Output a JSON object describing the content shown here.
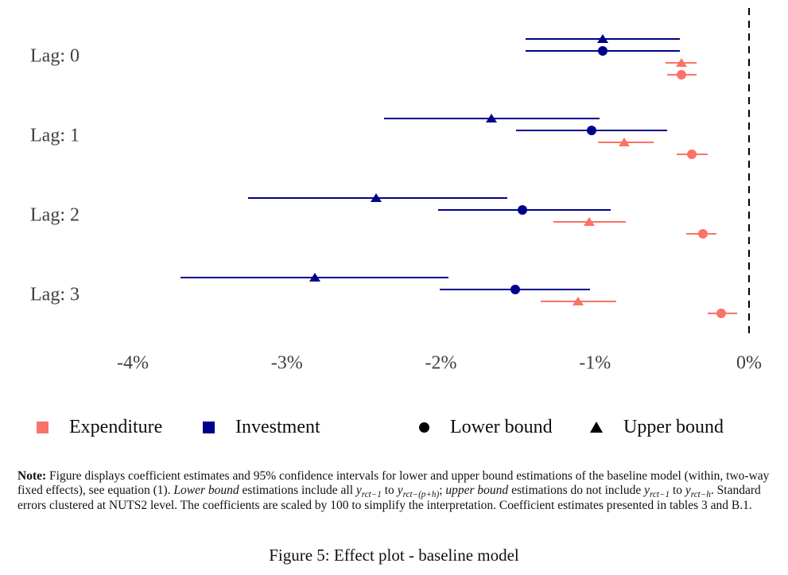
{
  "colors": {
    "expenditure": "#FA7268",
    "investment": "#00008B",
    "bound_marker": "#000000",
    "zero_line": "#000000"
  },
  "chart_data": {
    "type": "scatter",
    "subtype": "coefficient-dot-whisker",
    "title": "",
    "x_unit": "percent",
    "x_ticks": [
      -4,
      -3,
      -2,
      -1,
      0
    ],
    "x_tick_labels": [
      "-4%",
      "-3%",
      "-2%",
      "-1%",
      "0%"
    ],
    "x_range": [
      -4.75,
      0.25
    ],
    "zero_line_x": 0,
    "grid": "off",
    "groups": [
      {
        "label": "Lag: 0",
        "estimates": [
          {
            "series": "Investment",
            "bound": "upper",
            "marker": "triangle",
            "value": -0.95,
            "ci_low": -1.45,
            "ci_high": -0.45
          },
          {
            "series": "Investment",
            "bound": "lower",
            "marker": "circle",
            "value": -0.95,
            "ci_low": -1.45,
            "ci_high": -0.45
          },
          {
            "series": "Expenditure",
            "bound": "upper",
            "marker": "triangle",
            "value": -0.44,
            "ci_low": -0.54,
            "ci_high": -0.34
          },
          {
            "series": "Expenditure",
            "bound": "lower",
            "marker": "circle",
            "value": -0.44,
            "ci_low": -0.53,
            "ci_high": -0.34
          }
        ]
      },
      {
        "label": "Lag: 1",
        "estimates": [
          {
            "series": "Investment",
            "bound": "upper",
            "marker": "triangle",
            "value": -1.67,
            "ci_low": -2.37,
            "ci_high": -0.97
          },
          {
            "series": "Investment",
            "bound": "lower",
            "marker": "circle",
            "value": -1.02,
            "ci_low": -1.51,
            "ci_high": -0.53
          },
          {
            "series": "Expenditure",
            "bound": "upper",
            "marker": "triangle",
            "value": -0.81,
            "ci_low": -0.98,
            "ci_high": -0.62
          },
          {
            "series": "Expenditure",
            "bound": "lower",
            "marker": "circle",
            "value": -0.37,
            "ci_low": -0.47,
            "ci_high": -0.27
          }
        ]
      },
      {
        "label": "Lag: 2",
        "estimates": [
          {
            "series": "Investment",
            "bound": "upper",
            "marker": "triangle",
            "value": -2.42,
            "ci_low": -3.25,
            "ci_high": -1.57
          },
          {
            "series": "Investment",
            "bound": "lower",
            "marker": "circle",
            "value": -1.47,
            "ci_low": -2.02,
            "ci_high": -0.9
          },
          {
            "series": "Expenditure",
            "bound": "upper",
            "marker": "triangle",
            "value": -1.04,
            "ci_low": -1.27,
            "ci_high": -0.8
          },
          {
            "series": "Expenditure",
            "bound": "lower",
            "marker": "circle",
            "value": -0.3,
            "ci_low": -0.41,
            "ci_high": -0.21
          }
        ]
      },
      {
        "label": "Lag: 3",
        "estimates": [
          {
            "series": "Investment",
            "bound": "upper",
            "marker": "triangle",
            "value": -2.82,
            "ci_low": -3.69,
            "ci_high": -1.95
          },
          {
            "series": "Investment",
            "bound": "lower",
            "marker": "circle",
            "value": -1.52,
            "ci_low": -2.01,
            "ci_high": -1.03
          },
          {
            "series": "Expenditure",
            "bound": "upper",
            "marker": "triangle",
            "value": -1.11,
            "ci_low": -1.35,
            "ci_high": -0.86
          },
          {
            "series": "Expenditure",
            "bound": "lower",
            "marker": "circle",
            "value": -0.18,
            "ci_low": -0.27,
            "ci_high": -0.08
          }
        ]
      }
    ]
  },
  "legend": {
    "items": [
      {
        "label": "Expenditure",
        "marker": "square",
        "color": "#FA7268"
      },
      {
        "label": "Investment",
        "marker": "square",
        "color": "#00008B"
      },
      {
        "label": "Lower bound",
        "marker": "circle",
        "color": "#000000"
      },
      {
        "label": "Upper bound",
        "marker": "triangle",
        "color": "#000000"
      }
    ]
  },
  "note": {
    "segments": [
      {
        "text": "Note:",
        "style": "bold"
      },
      {
        "text": " Figure displays coefficient estimates and 95% confidence intervals for lower and upper bound estimations of the baseline model (within, two-way fixed effects), see equation (1). ",
        "style": "normal"
      },
      {
        "text": "Lower bound",
        "style": "italic"
      },
      {
        "text": " estimations include all ",
        "style": "normal"
      },
      {
        "text": "y",
        "style": "math"
      },
      {
        "text": "rct−1",
        "style": "sub"
      },
      {
        "text": " to ",
        "style": "normal"
      },
      {
        "text": "y",
        "style": "math"
      },
      {
        "text": "rct−(p+h)",
        "style": "sub"
      },
      {
        "text": "; ",
        "style": "normal"
      },
      {
        "text": "upper bound",
        "style": "italic"
      },
      {
        "text": " estimations do not include ",
        "style": "normal"
      },
      {
        "text": "y",
        "style": "math"
      },
      {
        "text": "rct−1",
        "style": "sub"
      },
      {
        "text": " to ",
        "style": "normal"
      },
      {
        "text": "y",
        "style": "math"
      },
      {
        "text": "rct−h",
        "style": "sub"
      },
      {
        "text": ". Standard errors clustered at NUTS2 level. The coefficients are scaled by 100 to simplify the interpretation. Coefficient estimates presented in tables 3 and B.1.",
        "style": "normal"
      }
    ]
  },
  "caption": "Figure 5: Effect plot - baseline model"
}
